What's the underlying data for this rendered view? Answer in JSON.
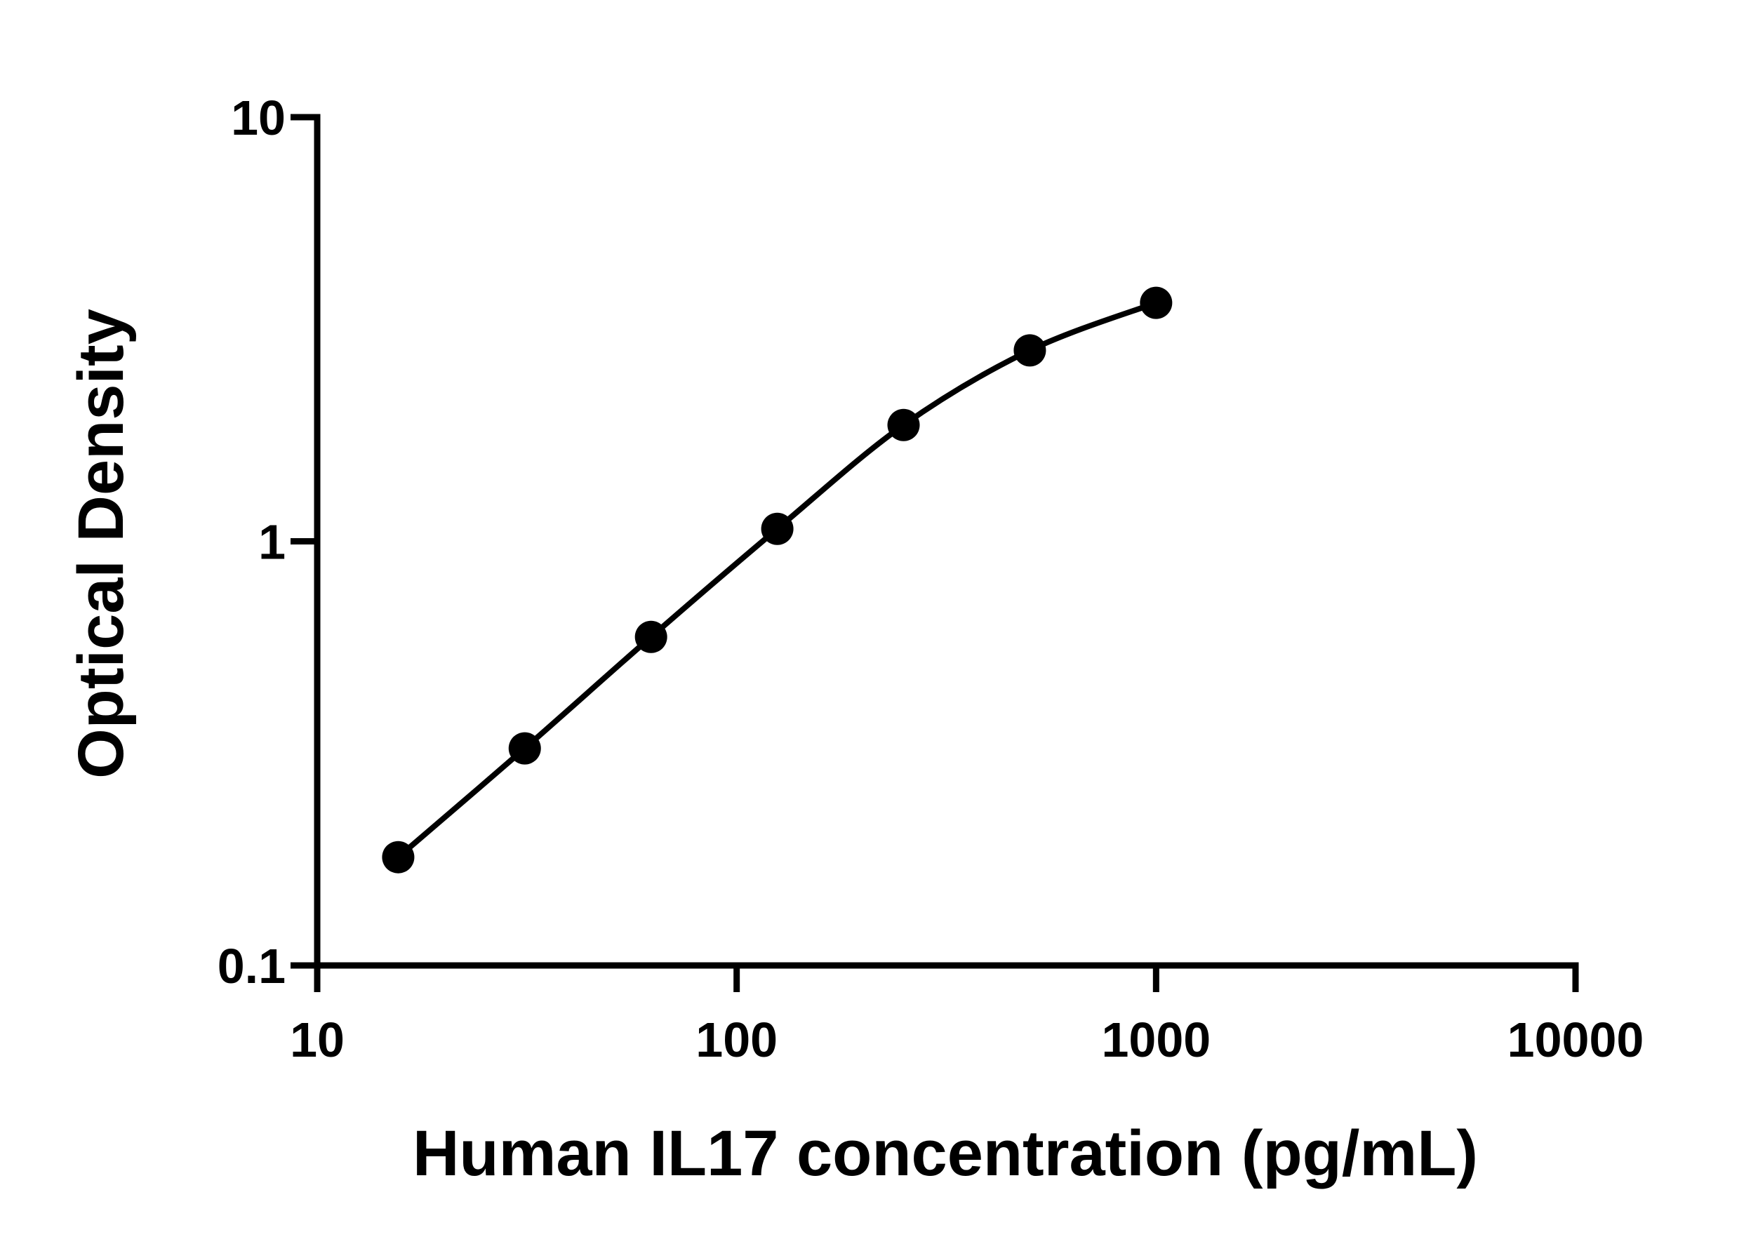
{
  "chart_data": {
    "type": "scatter",
    "title": "",
    "xlabel": "Human IL17 concentration (pg/mL)",
    "ylabel": "Optical Density",
    "xscale": "log",
    "yscale": "log",
    "xlim": [
      10,
      10000
    ],
    "ylim": [
      0.1,
      10
    ],
    "xticks": [
      "10",
      "100",
      "1000",
      "10000"
    ],
    "yticks": [
      "0.1",
      "1",
      "10"
    ],
    "grid": false,
    "legend": "none",
    "fit_line": true,
    "colors": {
      "marker": "#000000",
      "line": "#000000",
      "axis": "#000000"
    },
    "series": [
      {
        "x": [
          15.6,
          31.25,
          62.5,
          125,
          250,
          500,
          1000
        ],
        "y": [
          0.18,
          0.325,
          0.595,
          1.07,
          1.88,
          2.82,
          3.65
        ]
      }
    ]
  }
}
